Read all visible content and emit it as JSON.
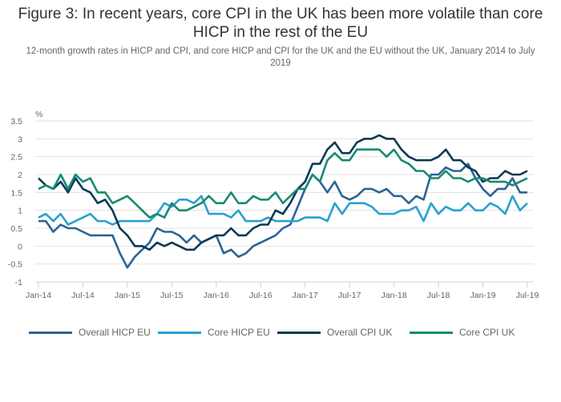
{
  "chart_data": {
    "type": "line",
    "title": "Figure 3: In recent years, core CPI in the UK has been more volatile than core HICP in the rest of the EU",
    "subtitle": "12-month growth rates in HICP and CPI, and core HICP and CPI for the UK and the EU without the UK, January 2014 to July 2019",
    "ylabel": "%",
    "xlabel": "",
    "ylim": [
      -1,
      3.5
    ],
    "yticks": [
      "-1",
      "-0.5",
      "0",
      "0.5",
      "1",
      "1.5",
      "2",
      "2.5",
      "3",
      "3.5"
    ],
    "ytick_values": [
      -1,
      -0.5,
      0,
      0.5,
      1,
      1.5,
      2,
      2.5,
      3,
      3.5
    ],
    "xticks": [
      "Jan-14",
      "Jul-14",
      "Jan-15",
      "Jul-15",
      "Jan-16",
      "Jul-16",
      "Jan-17",
      "Jul-17",
      "Jan-18",
      "Jul-18",
      "Jan-19",
      "Jul-19"
    ],
    "xtick_month_index": [
      0,
      6,
      12,
      18,
      24,
      30,
      36,
      42,
      48,
      54,
      60,
      66
    ],
    "x_start": "Jan-14",
    "grid": true,
    "legend_position": "bottom",
    "series": [
      {
        "name": "Overall HICP EU",
        "color": "#2a6496",
        "values": [
          0.7,
          0.7,
          0.4,
          0.6,
          0.5,
          0.5,
          0.4,
          0.3,
          0.3,
          0.3,
          0.3,
          -0.2,
          -0.6,
          -0.3,
          -0.1,
          0.1,
          0.5,
          0.4,
          0.4,
          0.3,
          0.1,
          0.3,
          0.1,
          0.2,
          0.3,
          -0.2,
          -0.1,
          -0.3,
          -0.2,
          0.0,
          0.1,
          0.2,
          0.3,
          0.5,
          0.6,
          1.1,
          1.6,
          2.0,
          1.8,
          1.5,
          1.8,
          1.4,
          1.3,
          1.4,
          1.6,
          1.6,
          1.5,
          1.6,
          1.4,
          1.4,
          1.2,
          1.4,
          1.3,
          2.0,
          2.0,
          2.2,
          2.1,
          2.1,
          2.3,
          1.9,
          1.6,
          1.4,
          1.6,
          1.6,
          1.9,
          1.5,
          1.5
        ]
      },
      {
        "name": "Core HICP EU",
        "color": "#2aa0d0",
        "values": [
          0.8,
          0.9,
          0.7,
          0.9,
          0.6,
          0.7,
          0.8,
          0.9,
          0.7,
          0.7,
          0.6,
          0.7,
          0.7,
          0.7,
          0.7,
          0.7,
          0.9,
          1.2,
          1.1,
          1.3,
          1.3,
          1.2,
          1.4,
          0.9,
          0.9,
          0.9,
          0.8,
          1.0,
          0.7,
          0.7,
          0.7,
          0.8,
          0.7,
          0.7,
          0.7,
          0.7,
          0.8,
          0.8,
          0.8,
          0.7,
          1.2,
          0.9,
          1.2,
          1.2,
          1.2,
          1.1,
          0.9,
          0.9,
          0.9,
          1.0,
          1.0,
          1.1,
          0.7,
          1.2,
          0.9,
          1.1,
          1.0,
          1.0,
          1.2,
          1.0,
          1.0,
          1.2,
          1.1,
          0.9,
          1.4,
          1.0,
          1.2
        ]
      },
      {
        "name": "Overall CPI UK",
        "color": "#0b3954",
        "values": [
          1.9,
          1.7,
          1.6,
          1.8,
          1.5,
          1.9,
          1.6,
          1.5,
          1.2,
          1.3,
          1.0,
          0.5,
          0.3,
          0.0,
          0.0,
          -0.1,
          0.1,
          0.0,
          0.1,
          0.0,
          -0.1,
          -0.1,
          0.1,
          0.2,
          0.3,
          0.3,
          0.5,
          0.3,
          0.3,
          0.5,
          0.6,
          0.6,
          1.0,
          0.9,
          1.2,
          1.6,
          1.8,
          2.3,
          2.3,
          2.7,
          2.9,
          2.6,
          2.6,
          2.9,
          3.0,
          3.0,
          3.1,
          3.0,
          3.0,
          2.7,
          2.5,
          2.4,
          2.4,
          2.4,
          2.5,
          2.7,
          2.4,
          2.4,
          2.2,
          2.1,
          1.8,
          1.9,
          1.9,
          2.1,
          2.0,
          2.0,
          2.1
        ]
      },
      {
        "name": "Core CPI UK",
        "color": "#178a71",
        "values": [
          1.6,
          1.7,
          1.6,
          2.0,
          1.6,
          2.0,
          1.8,
          1.9,
          1.5,
          1.5,
          1.2,
          1.3,
          1.4,
          1.2,
          1.0,
          0.8,
          0.9,
          0.8,
          1.2,
          1.0,
          1.0,
          1.1,
          1.2,
          1.4,
          1.2,
          1.2,
          1.5,
          1.2,
          1.2,
          1.4,
          1.3,
          1.3,
          1.5,
          1.2,
          1.4,
          1.6,
          1.6,
          2.0,
          1.8,
          2.4,
          2.6,
          2.4,
          2.4,
          2.7,
          2.7,
          2.7,
          2.7,
          2.5,
          2.7,
          2.4,
          2.3,
          2.1,
          2.1,
          1.9,
          1.9,
          2.1,
          1.9,
          1.9,
          1.8,
          1.9,
          1.9,
          1.8,
          1.8,
          1.8,
          1.7,
          1.8,
          1.9
        ]
      }
    ]
  }
}
